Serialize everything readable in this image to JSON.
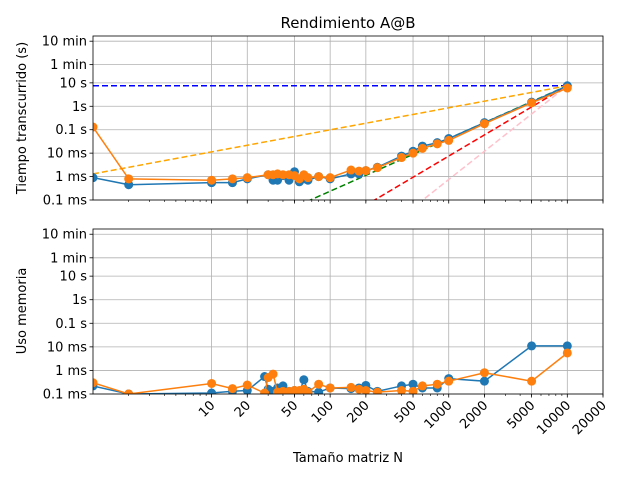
{
  "chart_data": [
    {
      "type": "line",
      "title": "Rendimiento A@B",
      "xlabel": "",
      "ylabel": "Tiempo transcurrido (s)",
      "xscale": "log",
      "yscale": "log",
      "xlim": [
        1,
        20000
      ],
      "ylim": [
        0.0001,
        1000
      ],
      "grid": true,
      "yticks": [
        {
          "value": 0.0001,
          "label": "0.1 ms"
        },
        {
          "value": 0.001,
          "label": "1 ms"
        },
        {
          "value": 0.01,
          "label": "10 ms"
        },
        {
          "value": 0.1,
          "label": "0.1 s"
        },
        {
          "value": 1,
          "label": "1s"
        },
        {
          "value": 10,
          "label": "10 s"
        },
        {
          "value": 60,
          "label": "1 min"
        },
        {
          "value": 600,
          "label": "10 min"
        }
      ],
      "series": [
        {
          "color": "#1f77b4",
          "marker": "circle",
          "x": [
            1,
            2,
            10,
            15,
            20,
            30,
            33,
            36,
            40,
            45,
            50,
            55,
            60,
            65,
            80,
            100,
            150,
            175,
            200,
            250,
            400,
            500,
            600,
            800,
            1000,
            2000,
            5000,
            10000
          ],
          "y": [
            0.0009,
            0.00045,
            0.00055,
            0.00055,
            0.0008,
            0.0012,
            0.0007,
            0.0007,
            0.0011,
            0.0007,
            0.0016,
            0.0006,
            0.0008,
            0.0007,
            0.001,
            0.0008,
            0.0013,
            0.0013,
            0.0018,
            0.0025,
            0.0075,
            0.012,
            0.02,
            0.028,
            0.042,
            0.2,
            1.5,
            7.5
          ]
        },
        {
          "color": "#ff7f0e",
          "marker": "circle",
          "x": [
            1,
            2,
            10,
            15,
            20,
            30,
            33,
            36,
            40,
            45,
            50,
            55,
            60,
            65,
            80,
            100,
            150,
            175,
            200,
            250,
            400,
            500,
            600,
            800,
            1000,
            2000,
            5000,
            10000
          ],
          "y": [
            0.13,
            0.0008,
            0.0007,
            0.0008,
            0.0009,
            0.0012,
            0.0012,
            0.0013,
            0.0012,
            0.0012,
            0.0011,
            0.0008,
            0.0012,
            0.0009,
            0.001,
            0.0009,
            0.0019,
            0.0017,
            0.0018,
            0.0024,
            0.0065,
            0.01,
            0.016,
            0.025,
            0.035,
            0.18,
            1.4,
            6.0
          ]
        }
      ],
      "reference_lines": [
        {
          "color": "#0000ff",
          "style": "dashed",
          "x": [
            1,
            10000
          ],
          "y": [
            7.5,
            7.5
          ]
        },
        {
          "color": "#ffa500",
          "style": "dashed",
          "x": [
            1,
            10000
          ],
          "y": [
            0.0013,
            7.5
          ]
        },
        {
          "color": "#008000",
          "style": "dashed",
          "x": [
            1,
            10000
          ],
          "y": [
            7.5e-09,
            7.5
          ]
        },
        {
          "color": "#ff0000",
          "style": "dashed",
          "x": [
            1,
            10000
          ],
          "y": [
            7.5e-12,
            7.5
          ]
        },
        {
          "color": "#ffc0cb",
          "style": "dashed",
          "x": [
            1,
            10000
          ],
          "y": [
            7.5e-16,
            7.5
          ]
        }
      ]
    },
    {
      "type": "line",
      "title": "",
      "xlabel": "Tamaño matriz N",
      "ylabel": "Uso memoria",
      "xscale": "log",
      "yscale": "log",
      "xlim": [
        1,
        20000
      ],
      "ylim": [
        0.0001,
        1000
      ],
      "grid": true,
      "xticks": [
        {
          "value": 10,
          "label": "10"
        },
        {
          "value": 20,
          "label": "20"
        },
        {
          "value": 50,
          "label": "50"
        },
        {
          "value": 100,
          "label": "100"
        },
        {
          "value": 200,
          "label": "200"
        },
        {
          "value": 500,
          "label": "500"
        },
        {
          "value": 1000,
          "label": "1000"
        },
        {
          "value": 2000,
          "label": "2000"
        },
        {
          "value": 5000,
          "label": "5000"
        },
        {
          "value": 10000,
          "label": "10000"
        },
        {
          "value": 20000,
          "label": "20000"
        }
      ],
      "yticks": [
        {
          "value": 0.0001,
          "label": "0.1 ms"
        },
        {
          "value": 0.001,
          "label": "1 ms"
        },
        {
          "value": 0.01,
          "label": "10 ms"
        },
        {
          "value": 0.1,
          "label": "0.1 s"
        },
        {
          "value": 1,
          "label": "1s"
        },
        {
          "value": 10,
          "label": "10 s"
        },
        {
          "value": 60,
          "label": "1 min"
        },
        {
          "value": 600,
          "label": "10 min"
        }
      ],
      "series": [
        {
          "color": "#1f77b4",
          "marker": "circle",
          "x": [
            1,
            2,
            10,
            15,
            20,
            28,
            30,
            33,
            36,
            40,
            45,
            50,
            55,
            60,
            65,
            80,
            100,
            150,
            175,
            200,
            250,
            400,
            500,
            600,
            800,
            1000,
            2000,
            5000,
            10000
          ],
          "y": [
            0.00022,
            0.0001,
            0.00011,
            0.00013,
            0.00014,
            0.00055,
            0.00016,
            0.00013,
            0.00018,
            0.00022,
            0.00013,
            0.00014,
            0.00012,
            0.0004,
            0.00013,
            0.00012,
            0.00018,
            0.00017,
            0.00018,
            0.00023,
            0.00013,
            0.00022,
            0.00026,
            0.00018,
            0.00018,
            0.00045,
            0.00035,
            0.011,
            0.011
          ]
        },
        {
          "color": "#ff7f0e",
          "marker": "circle",
          "x": [
            1,
            2,
            10,
            15,
            20,
            28,
            30,
            33,
            36,
            40,
            45,
            50,
            55,
            60,
            65,
            80,
            100,
            150,
            175,
            200,
            250,
            400,
            500,
            600,
            800,
            1000,
            2000,
            5000,
            10000
          ],
          "y": [
            0.0003,
            0.0001,
            0.00028,
            0.00017,
            0.00024,
            0.00011,
            0.0005,
            0.0007,
            0.00012,
            0.00013,
            0.00013,
            0.00014,
            0.00014,
            0.00016,
            0.00012,
            0.00026,
            0.00018,
            0.00019,
            0.00016,
            0.00014,
            0.00012,
            0.00014,
            0.00013,
            0.00022,
            0.00026,
            0.00035,
            0.0008,
            0.00035,
            0.0055
          ]
        }
      ]
    }
  ]
}
